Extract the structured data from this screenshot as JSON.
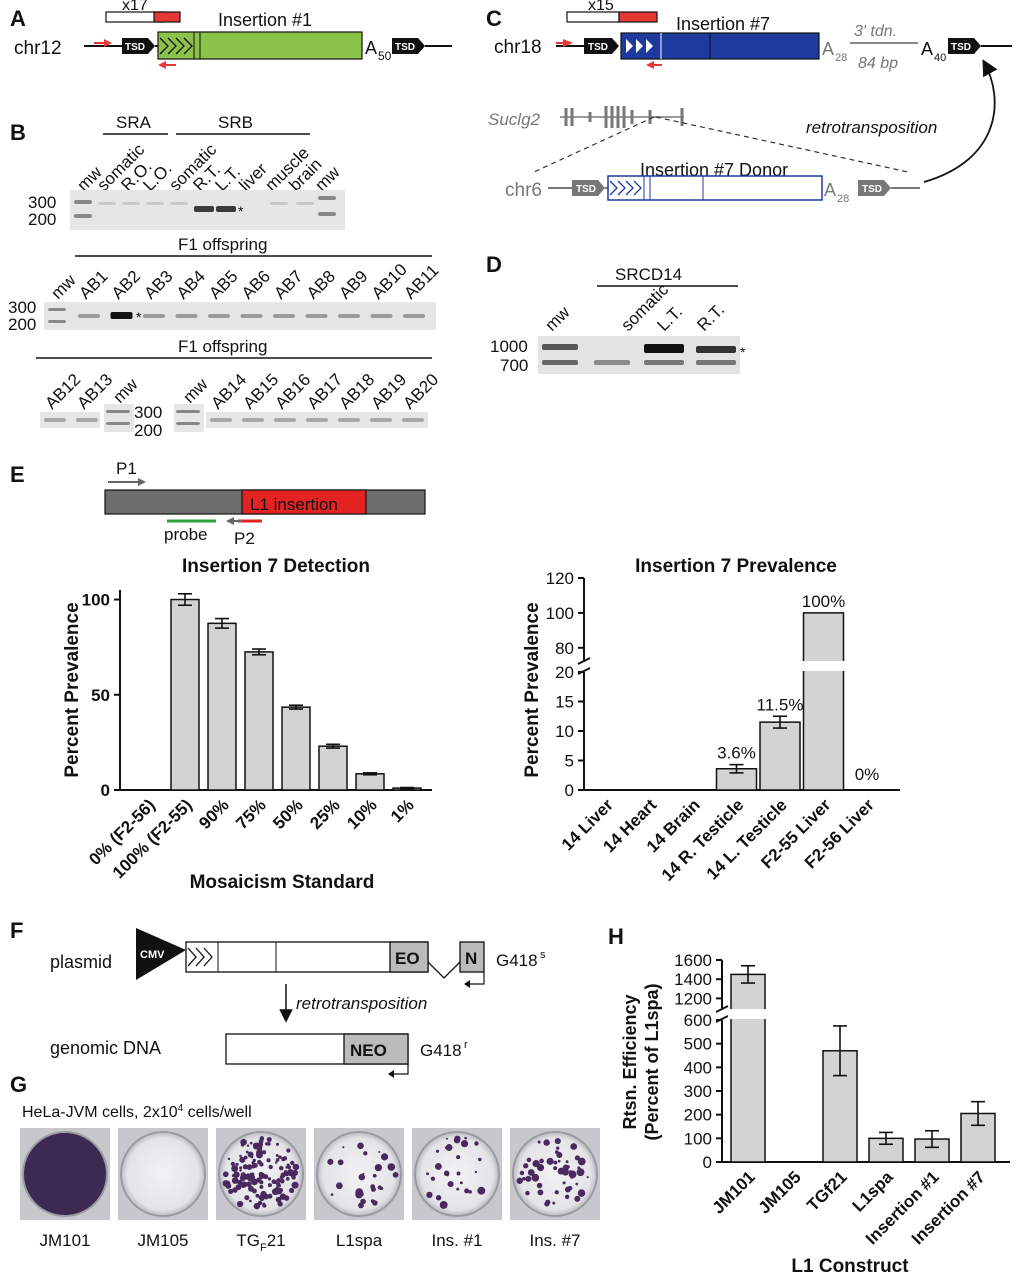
{
  "panels": {
    "A": {
      "label": "A",
      "repeat": "x17",
      "chrom": "chr12",
      "tsd": "TSD",
      "insertion": "Insertion #1",
      "polyA_base": "A",
      "polyA_sub": "50",
      "colors": {
        "insertion": "#8bc34a",
        "primer": "#e53935"
      }
    },
    "B": {
      "label": "B",
      "group1": "SRA",
      "group2": "SRB",
      "mw": "mw",
      "mw_300": "300",
      "mw_200": "200",
      "lanes_top": [
        "somatic",
        "R.O.",
        "L.O.",
        "somatic",
        "R.T.",
        "L.T.",
        "liver",
        "muscle",
        "brain"
      ],
      "star": "*",
      "f1_title": "F1 offspring",
      "f1_row1": [
        "AB1",
        "AB2",
        "AB3",
        "AB4",
        "AB5",
        "AB6",
        "AB7",
        "AB8",
        "AB9",
        "AB10",
        "AB11"
      ],
      "f1_row2a": [
        "AB12",
        "AB13"
      ],
      "f1_row2b": [
        "AB14",
        "AB15",
        "AB16",
        "AB17",
        "AB18",
        "AB19",
        "AB20"
      ]
    },
    "C": {
      "label": "C",
      "repeat": "x15",
      "chrom": "chr18",
      "tsd": "TSD",
      "insertion": "Insertion #7",
      "a28_base": "A",
      "a28_sub": "28",
      "tdn_line1": "3' tdn.",
      "tdn_line2": "84 bp",
      "a40_base": "A",
      "a40_sub": "40",
      "gene": "Suclg2",
      "retro": "retrotransposition",
      "donor_title": "Insertion #7 Donor",
      "donor_chrom": "chr6",
      "colors": {
        "insertion": "#1f3a9e"
      }
    },
    "D": {
      "label": "D",
      "title": "SRCD14",
      "mw": "mw",
      "lanes": [
        "somatic",
        "L.T.",
        "R.T."
      ],
      "mw_1000": "1000",
      "mw_700": "700",
      "star": "*"
    },
    "E": {
      "label": "E",
      "p1": "P1",
      "p2": "P2",
      "probe": "probe",
      "insertion": "L1 insertion",
      "colors": {
        "insertion": "#e32222",
        "probe": "#2e9e3e"
      }
    },
    "F": {
      "label": "F",
      "plasmid": "plasmid",
      "cmv": "CMV",
      "neo_left": "EO",
      "neo_right": "N",
      "g418s_base": "G418",
      "g418s_sup": "s",
      "retro": "retrotransposition",
      "genomic": "genomic DNA",
      "neo_full": "NEO",
      "g418r_base": "G418",
      "g418r_sup": "r"
    },
    "G": {
      "label": "G",
      "caption_pre": "HeLa-JVM cells, 2x10",
      "caption_sup": "4",
      "caption_post": " cells/well",
      "wells": [
        {
          "name": "JM101",
          "colonies": "confluent"
        },
        {
          "name": "JM105",
          "colonies": "none"
        },
        {
          "name": "TGF21",
          "colonies": "dense"
        },
        {
          "name": "L1spa",
          "colonies": "sparse"
        },
        {
          "name": "Ins. #1",
          "colonies": "sparse"
        },
        {
          "name": "Ins. #7",
          "colonies": "moderate"
        }
      ],
      "tgf_base": "TG",
      "tgf_sub": "F",
      "tgf_post": "21",
      "colors": {
        "stain": "#4a2a5e"
      }
    },
    "H": {
      "label": "H"
    }
  },
  "chart_data": [
    {
      "id": "E-left",
      "type": "bar",
      "title": "Insertion 7 Detection",
      "ylabel": "Percent Prevalence",
      "xlabel": "Mosaicism Standard",
      "categories": [
        "0% (F2-56)",
        "100% (F2-55)",
        "90%",
        "75%",
        "50%",
        "25%",
        "10%",
        "1%"
      ],
      "values": [
        0,
        100,
        87.5,
        72.5,
        43.5,
        23,
        8.5,
        1
      ],
      "errors": [
        0,
        3,
        2.5,
        1.5,
        1,
        1,
        0.5,
        0.3
      ],
      "ylim": [
        0,
        105
      ],
      "yticks": [
        "0",
        "50",
        "100"
      ],
      "color": "#d3d3d3"
    },
    {
      "id": "E-right",
      "type": "bar",
      "title": "Insertion 7 Prevalence",
      "ylabel": "Percent Prevalence",
      "categories": [
        "14 Liver",
        "14 Heart",
        "14 Brain",
        "14 R. Testicle",
        "14 L. Testicle",
        "F2-55 Liver",
        "F2-56 Liver"
      ],
      "values": [
        0,
        0,
        0,
        3.6,
        11.5,
        100,
        0
      ],
      "errors": [
        0,
        0,
        0,
        0.7,
        1,
        0,
        0
      ],
      "data_labels": [
        "",
        "",
        "",
        "3.6%",
        "11.5%",
        "100%",
        "0%"
      ],
      "axis_break": [
        20,
        73
      ],
      "yticks_lower": [
        "0",
        "5",
        "10",
        "15",
        "20"
      ],
      "yticks_upper": [
        "80",
        "100",
        "120"
      ],
      "color": "#d3d3d3"
    },
    {
      "id": "H",
      "type": "bar",
      "ylabel_line1": "Rtsn. Efficiency",
      "ylabel_line2": "(Percent of L1spa)",
      "xlabel": "L1 Construct",
      "categories": [
        "JM101",
        "JM105",
        "TGf21",
        "L1spa",
        "Insertion #1",
        "Insertion #7"
      ],
      "values": [
        1450,
        0,
        470,
        100,
        97,
        205
      ],
      "errors": [
        90,
        0,
        105,
        25,
        35,
        50
      ],
      "axis_break": [
        600,
        1100
      ],
      "yticks_lower": [
        "0",
        "100",
        "200",
        "300",
        "400",
        "500",
        "600"
      ],
      "yticks_upper": [
        "1200",
        "1400",
        "1600"
      ],
      "color": "#d3d3d3"
    }
  ]
}
